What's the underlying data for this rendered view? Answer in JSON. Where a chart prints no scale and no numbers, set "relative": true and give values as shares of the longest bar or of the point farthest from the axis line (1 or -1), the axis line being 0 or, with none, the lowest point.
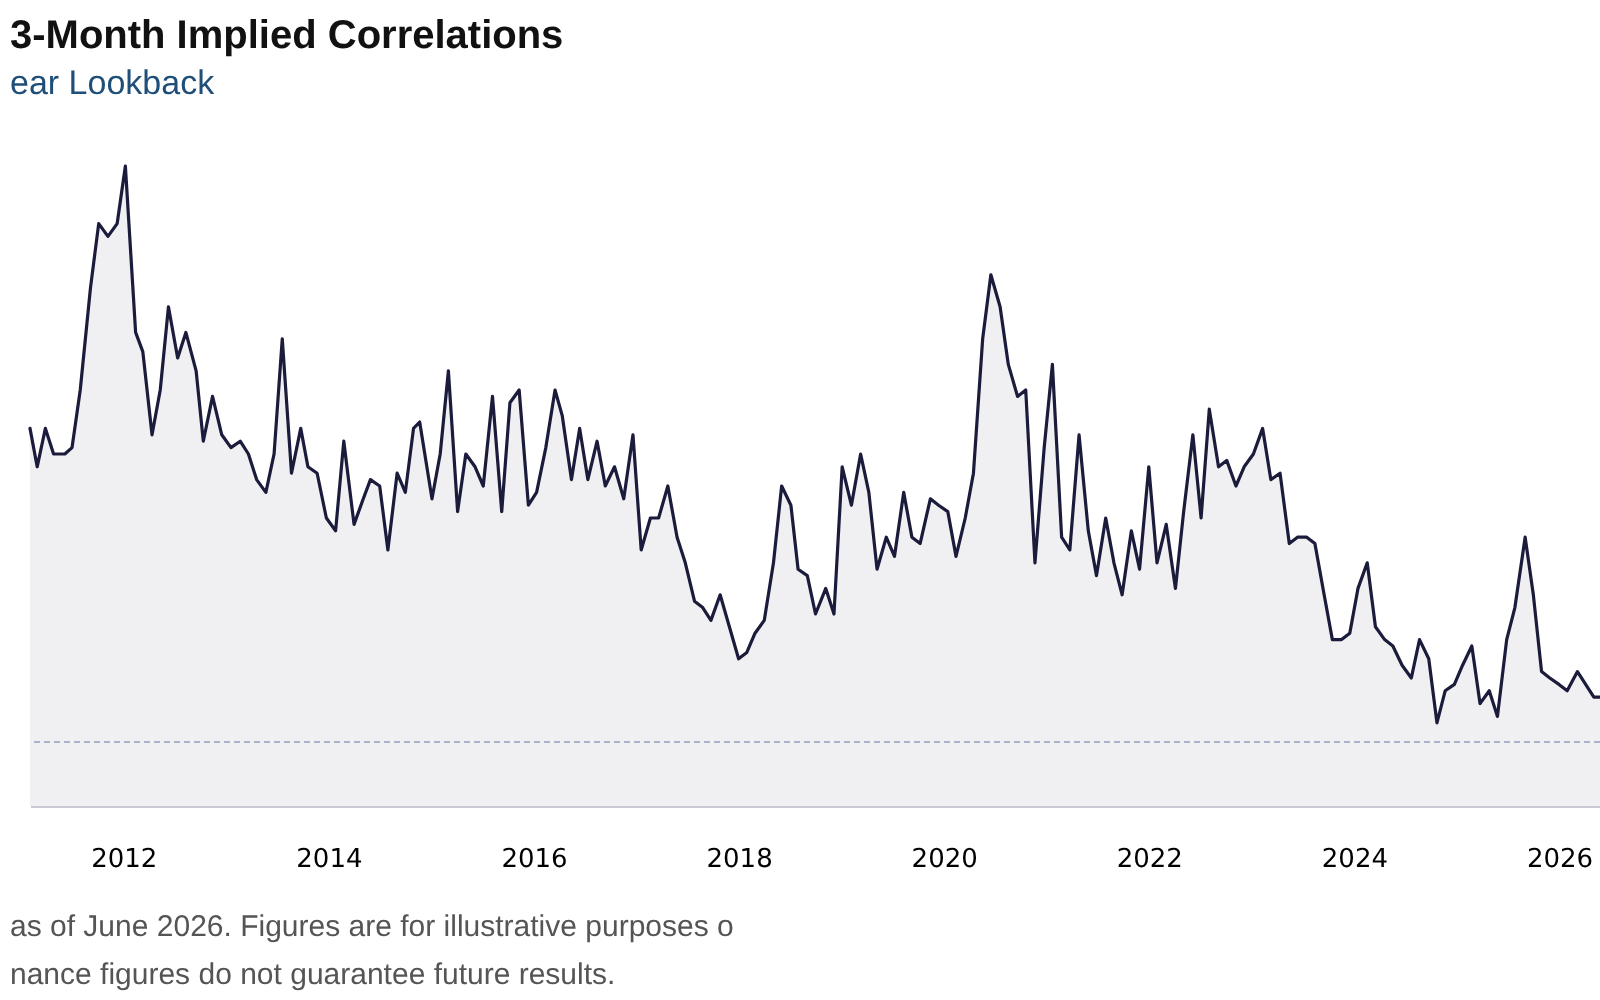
{
  "chart_data": {
    "type": "area",
    "title": "3-Month Implied Correlations",
    "subtitle": "ear Lookback",
    "relative": true,
    "x": [
      2011.09,
      2011.16,
      2011.24,
      2011.32,
      2011.43,
      2011.5,
      2011.58,
      2011.68,
      2011.76,
      2011.85,
      2011.94,
      2012.02,
      2012.12,
      2012.19,
      2012.28,
      2012.36,
      2012.44,
      2012.53,
      2012.61,
      2012.71,
      2012.78,
      2012.87,
      2012.96,
      2013.05,
      2013.14,
      2013.22,
      2013.3,
      2013.39,
      2013.47,
      2013.55,
      2013.64,
      2013.73,
      2013.8,
      2013.89,
      2013.98,
      2014.07,
      2014.15,
      2014.25,
      2014.34,
      2014.41,
      2014.5,
      2014.58,
      2014.67,
      2014.75,
      2014.83,
      2014.89,
      2015.01,
      2015.09,
      2015.17,
      2015.26,
      2015.34,
      2015.43,
      2015.51,
      2015.6,
      2015.69,
      2015.77,
      2015.86,
      2015.95,
      2016.03,
      2016.12,
      2016.21,
      2016.28,
      2016.37,
      2016.45,
      2016.53,
      2016.62,
      2016.7,
      2016.79,
      2016.88,
      2016.97,
      2017.05,
      2017.14,
      2017.22,
      2017.31,
      2017.4,
      2017.48,
      2017.57,
      2017.65,
      2017.73,
      2017.82,
      2017.91,
      2018.0,
      2018.08,
      2018.16,
      2018.25,
      2018.34,
      2018.42,
      2018.51,
      2018.58,
      2018.67,
      2018.75,
      2018.85,
      2018.93,
      2019.01,
      2019.1,
      2019.19,
      2019.27,
      2019.35,
      2019.44,
      2019.52,
      2019.61,
      2019.69,
      2019.77,
      2019.87,
      2019.95,
      2020.04,
      2020.12,
      2020.21,
      2020.29,
      2020.38,
      2020.46,
      2020.55,
      2020.63,
      2020.72,
      2020.8,
      2020.89,
      2020.98,
      2021.06,
      2021.15,
      2021.23,
      2021.32,
      2021.41,
      2021.49,
      2021.58,
      2021.66,
      2021.74,
      2021.83,
      2021.91,
      2022.0,
      2022.08,
      2022.17,
      2022.26,
      2022.34,
      2022.43,
      2022.51,
      2022.59,
      2022.68,
      2022.76,
      2022.85,
      2022.93,
      2023.02,
      2023.11,
      2023.19,
      2023.28,
      2023.37,
      2023.45,
      2023.54,
      2023.62,
      2023.71,
      2023.79,
      2023.88,
      2023.96,
      2024.04,
      2024.13,
      2024.21,
      2024.3,
      2024.38,
      2024.47,
      2024.56,
      2024.64,
      2024.73,
      2024.81,
      2024.89,
      2024.98,
      2025.06,
      2025.15,
      2025.23,
      2025.32,
      2025.4,
      2025.49,
      2025.57,
      2025.67,
      2025.75,
      2025.83,
      2025.91,
      2026.0,
      2026.08,
      2026.18,
      2026.26,
      2026.34,
      2026.4
    ],
    "series": [
      {
        "color": "#1b1b3b",
        "values": [
          0.59,
          0.53,
          0.59,
          0.55,
          0.55,
          0.56,
          0.65,
          0.81,
          0.91,
          0.89,
          0.91,
          1.0,
          0.74,
          0.71,
          0.58,
          0.65,
          0.78,
          0.7,
          0.74,
          0.68,
          0.57,
          0.64,
          0.58,
          0.56,
          0.57,
          0.55,
          0.51,
          0.49,
          0.55,
          0.73,
          0.52,
          0.59,
          0.53,
          0.52,
          0.45,
          0.43,
          0.57,
          0.44,
          0.48,
          0.51,
          0.5,
          0.4,
          0.52,
          0.49,
          0.59,
          0.6,
          0.48,
          0.55,
          0.68,
          0.46,
          0.55,
          0.53,
          0.5,
          0.64,
          0.46,
          0.63,
          0.65,
          0.47,
          0.49,
          0.56,
          0.65,
          0.61,
          0.51,
          0.59,
          0.51,
          0.57,
          0.5,
          0.53,
          0.48,
          0.58,
          0.4,
          0.45,
          0.45,
          0.5,
          0.42,
          0.38,
          0.32,
          0.31,
          0.29,
          0.33,
          0.28,
          0.23,
          0.24,
          0.27,
          0.29,
          0.38,
          0.5,
          0.47,
          0.37,
          0.36,
          0.3,
          0.34,
          0.3,
          0.53,
          0.47,
          0.55,
          0.49,
          0.37,
          0.42,
          0.39,
          0.49,
          0.42,
          0.41,
          0.48,
          0.47,
          0.46,
          0.39,
          0.45,
          0.52,
          0.73,
          0.83,
          0.78,
          0.69,
          0.64,
          0.65,
          0.38,
          0.56,
          0.69,
          0.42,
          0.4,
          0.58,
          0.43,
          0.36,
          0.45,
          0.38,
          0.33,
          0.43,
          0.37,
          0.53,
          0.38,
          0.44,
          0.34,
          0.46,
          0.58,
          0.45,
          0.62,
          0.53,
          0.54,
          0.5,
          0.53,
          0.55,
          0.59,
          0.51,
          0.52,
          0.41,
          0.42,
          0.42,
          0.41,
          0.33,
          0.26,
          0.26,
          0.27,
          0.34,
          0.38,
          0.28,
          0.26,
          0.25,
          0.22,
          0.2,
          0.26,
          0.23,
          0.13,
          0.18,
          0.19,
          0.22,
          0.25,
          0.16,
          0.18,
          0.14,
          0.26,
          0.31,
          0.42,
          0.33,
          0.21,
          0.2,
          0.19,
          0.18,
          0.21,
          0.19,
          0.17,
          0.17
        ]
      }
    ],
    "xlim": [
      2011.09,
      2026.4
    ],
    "xticks": [
      2012,
      2014,
      2016,
      2018,
      2020,
      2022,
      2024,
      2026
    ],
    "ref_lines": [
      {
        "axis": "y",
        "value": 0.1,
        "color": "#a9b3cc",
        "line_style": "dashed"
      }
    ],
    "annotations": [
      "as of June 2026. Figures are for illustrative purposes o",
      "nance figures do not guarantee future results."
    ]
  }
}
